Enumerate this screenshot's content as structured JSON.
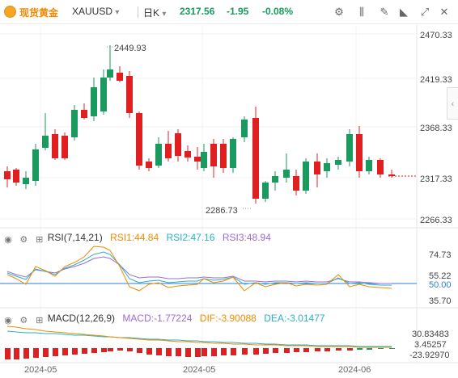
{
  "header": {
    "name": "现货黄金",
    "symbol": "XAUUSD",
    "symbol_arrow": "▾",
    "period": "日K",
    "period_arrow": "▾",
    "price": "2317.56",
    "change": "-1.95",
    "change_pct": "-0.08%",
    "colors": {
      "down": "#e02020",
      "up": "#1a9a5e",
      "accent": "#f5a623"
    }
  },
  "toolbar_icons": [
    "settings-sliders-icon",
    "chart-type-icon",
    "drawing-icon",
    "indicator-icon",
    "fullscreen-icon",
    "close-icon"
  ],
  "toolbar_glyphs": [
    "⚙",
    "⫼",
    "✎",
    "◣",
    "⤢",
    "✕"
  ],
  "price_axis": [
    "2470.33",
    "2419.33",
    "2368.33",
    "2317.33",
    "2266.33"
  ],
  "annotations": {
    "high": "2449.93",
    "low": "2286.73"
  },
  "rsi": {
    "title": "RSI(7,14,21)",
    "rsi1": "RSI1:44.84",
    "rsi2": "RSI2:47.16",
    "rsi3": "RSI3:48.94",
    "axis": [
      "74.73",
      "55.22",
      "50.00",
      "35.70"
    ]
  },
  "macd": {
    "title": "MACD(12,26,9)",
    "macd": "MACD:-1.77224",
    "dif": "DIF:-3.90088",
    "dea": "DEA:-3.01477",
    "axis": [
      "30.83483",
      "3.45257",
      "-23.92970"
    ]
  },
  "dates": [
    "2024-05",
    "2024-05",
    "2024-06"
  ],
  "side_toggle": "‹"
}
